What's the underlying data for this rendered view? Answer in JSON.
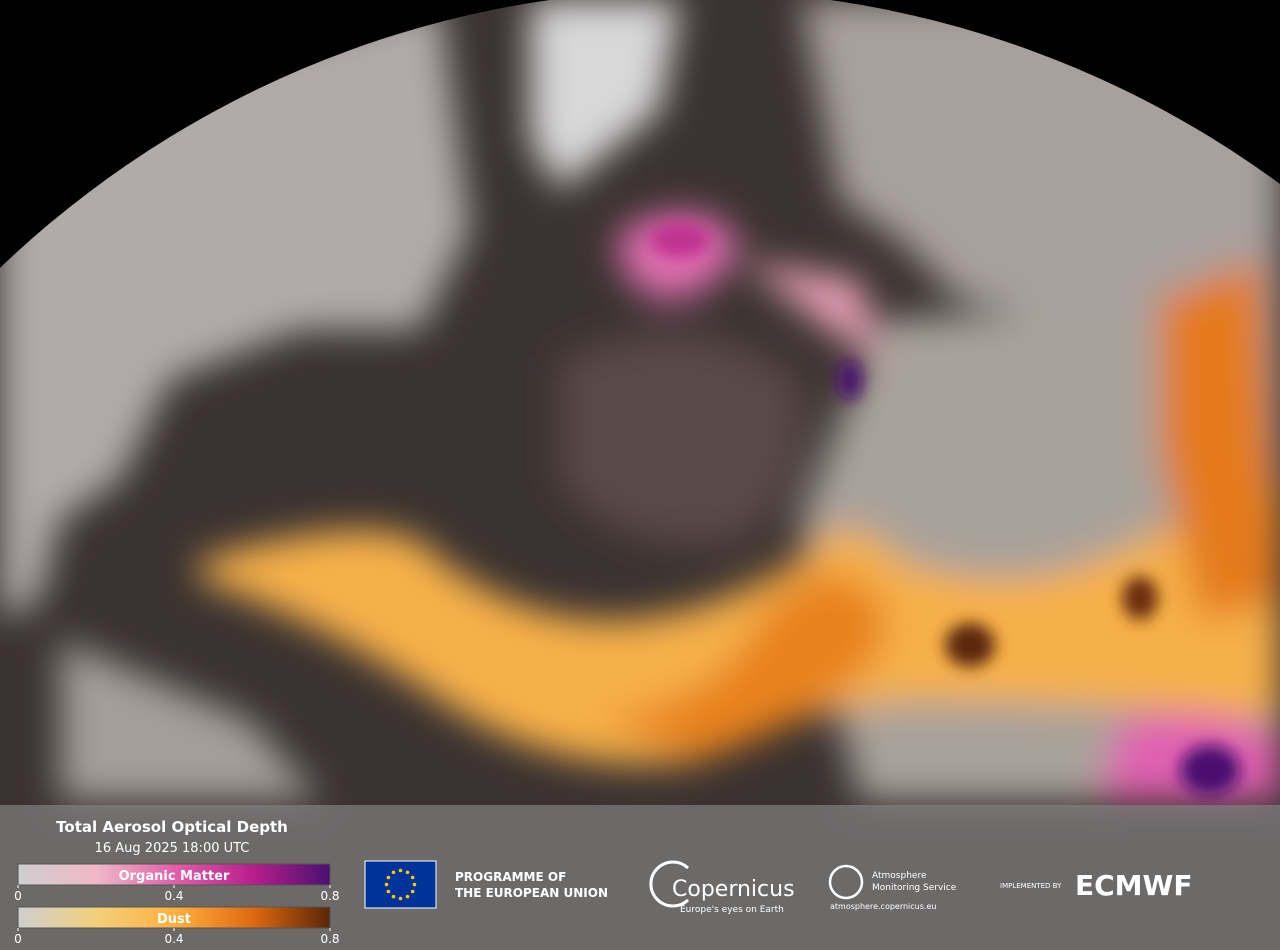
{
  "legend": {
    "title": "Total Aerosol Optical Depth",
    "subtitle": "16 Aug 2025 18:00 UTC",
    "colorbars": [
      {
        "name": "Organic Matter",
        "colors": [
          "#cfcfcf",
          "#f0b8c8",
          "#e060a8",
          "#b8208c",
          "#4a1070"
        ],
        "lim": [
          0,
          0.8
        ],
        "ticks": [
          0,
          0.4,
          0.8
        ]
      },
      {
        "name": "Dust",
        "colors": [
          "#cfcfcf",
          "#f2d07a",
          "#ffb040",
          "#e06a10",
          "#5a2608"
        ],
        "lim": [
          0,
          0.8
        ],
        "ticks": [
          0,
          0.4,
          0.8
        ]
      }
    ]
  },
  "logos": {
    "eu": [
      "PROGRAMME OF",
      "THE EUROPEAN UNION"
    ],
    "copernicus": {
      "name": "Copernicus",
      "tagline": "Europe's eyes on Earth"
    },
    "cams": {
      "name": [
        "Atmosphere",
        "Monitoring Service"
      ],
      "url": "atmosphere.copernicus.eu"
    },
    "ecmwf": {
      "label": "IMPLEMENTED BY",
      "name": "ECMWF"
    }
  }
}
